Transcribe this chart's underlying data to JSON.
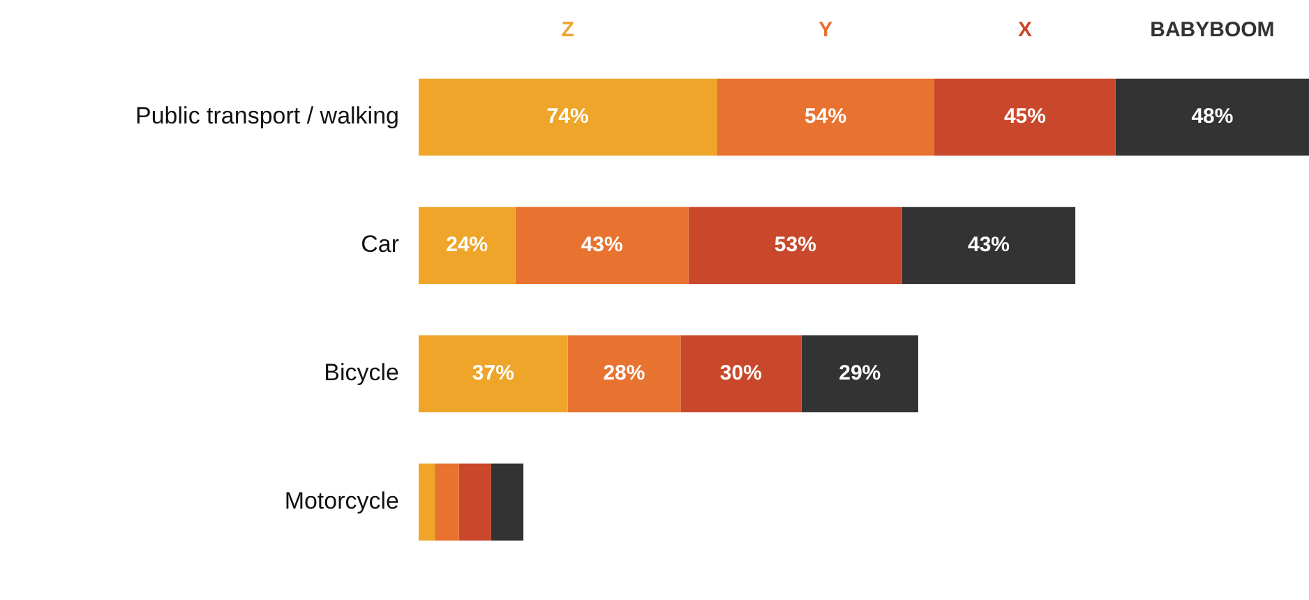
{
  "chart_data": {
    "type": "bar",
    "orientation": "horizontal",
    "stacked": true,
    "legend": "top",
    "tick_labels": "y",
    "grid": false,
    "categories": [
      "Public transport / walking",
      "Car",
      "Bicycle",
      "Motorcycle"
    ],
    "series": [
      {
        "name": "Z",
        "color": "#eea52a",
        "values": [
          74,
          24,
          37,
          4
        ],
        "value_labels": [
          "74%",
          "24%",
          "37%",
          null
        ]
      },
      {
        "name": "Y",
        "color": "#e8722f",
        "values": [
          54,
          43,
          28,
          6
        ],
        "value_labels": [
          "54%",
          "43%",
          "28%",
          null
        ]
      },
      {
        "name": "X",
        "color": "#c9482b",
        "values": [
          45,
          53,
          30,
          8
        ],
        "value_labels": [
          "45%",
          "53%",
          "30%",
          null
        ]
      },
      {
        "name": "BABYBOOM",
        "color": "#333333",
        "values": [
          48,
          43,
          29,
          8
        ],
        "value_labels": [
          "48%",
          "43%",
          "29%",
          null
        ]
      }
    ]
  }
}
